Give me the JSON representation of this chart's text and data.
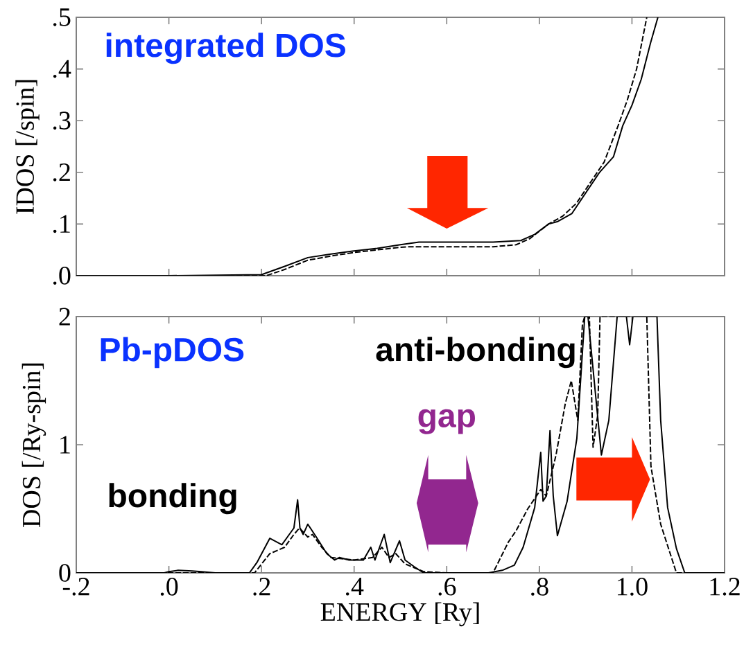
{
  "chart_data": [
    {
      "type": "line",
      "ylabel": "IDOS [/spin]",
      "annotations": [
        "integrated DOS"
      ],
      "tick_labels": "y",
      "xlim": [
        -0.2,
        1.2
      ],
      "xticks": [
        {
          "value": -0.2,
          "label": null
        },
        {
          "value": 0,
          "label": null
        },
        {
          "value": 0.2,
          "label": null
        },
        {
          "value": 0.4,
          "label": null
        },
        {
          "value": 0.6,
          "label": null
        },
        {
          "value": 0.8,
          "label": null
        },
        {
          "value": 1.0,
          "label": null
        },
        {
          "value": 1.2,
          "label": null
        }
      ],
      "ylim": [
        0,
        0.5
      ],
      "yticks": [
        {
          "value": 0,
          "label": ".0"
        },
        {
          "value": 0.1,
          "label": ".1"
        },
        {
          "value": 0.2,
          "label": ".2"
        },
        {
          "value": 0.3,
          "label": ".3"
        },
        {
          "value": 0.4,
          "label": ".4"
        },
        {
          "value": 0.5,
          "label": ".5"
        }
      ],
      "series": [
        {
          "color": "#000000",
          "line_style": "solid",
          "x": [
            -0.2,
            0.0,
            0.2,
            0.25,
            0.3,
            0.35,
            0.4,
            0.45,
            0.5,
            0.54,
            0.6,
            0.7,
            0.76,
            0.79,
            0.82,
            0.84,
            0.87,
            0.9,
            0.93,
            0.96,
            0.98,
            1.0,
            1.02,
            1.04,
            1.056
          ],
          "values": [
            0,
            0,
            0.002,
            0.018,
            0.035,
            0.042,
            0.048,
            0.053,
            0.06,
            0.065,
            0.065,
            0.065,
            0.068,
            0.08,
            0.1,
            0.105,
            0.12,
            0.16,
            0.2,
            0.23,
            0.29,
            0.33,
            0.38,
            0.45,
            0.5
          ]
        },
        {
          "color": "#000000",
          "line_style": "dashed",
          "x": [
            -0.2,
            0.0,
            0.21,
            0.25,
            0.3,
            0.35,
            0.4,
            0.45,
            0.5,
            0.52,
            0.6,
            0.7,
            0.75,
            0.78,
            0.82,
            0.85,
            0.88,
            0.91,
            0.94,
            0.97,
            0.99,
            1.01,
            1.032
          ],
          "values": [
            0,
            0,
            0,
            0.012,
            0.03,
            0.038,
            0.045,
            0.05,
            0.055,
            0.056,
            0.056,
            0.056,
            0.06,
            0.072,
            0.1,
            0.115,
            0.14,
            0.18,
            0.22,
            0.29,
            0.34,
            0.4,
            0.5
          ]
        }
      ]
    },
    {
      "type": "line",
      "xlabel": "ENERGY [Ry]",
      "ylabel": "DOS [/Ry-spin]",
      "annotations": [
        "Pb-pDOS",
        "anti-bonding",
        "gap",
        "bonding"
      ],
      "xlim": [
        -0.2,
        1.2
      ],
      "xticks": [
        {
          "value": -0.2,
          "label": "-.2"
        },
        {
          "value": 0,
          "label": ".0"
        },
        {
          "value": 0.2,
          "label": ".2"
        },
        {
          "value": 0.4,
          "label": ".4"
        },
        {
          "value": 0.6,
          "label": ".6"
        },
        {
          "value": 0.8,
          "label": ".8"
        },
        {
          "value": 1.0,
          "label": "1.0"
        },
        1.2
      ],
      "ylim": [
        0,
        2
      ],
      "yticks": [
        0,
        1,
        2
      ],
      "series": [
        {
          "color": "#000000",
          "line_style": "solid",
          "x": [
            -0.2,
            -0.01,
            0.0,
            0.02,
            0.05,
            0.07,
            0.1,
            0.174,
            0.19,
            0.218,
            0.244,
            0.26,
            0.27,
            0.278,
            0.283,
            0.29,
            0.3,
            0.32,
            0.341,
            0.358,
            0.368,
            0.389,
            0.42,
            0.436,
            0.445,
            0.465,
            0.478,
            0.498,
            0.51,
            0.529,
            0.55,
            0.69,
            0.72,
            0.746,
            0.765,
            0.79,
            0.803,
            0.808,
            0.815,
            0.823,
            0.83,
            0.839,
            0.86,
            0.881,
            0.898,
            0.905,
            0.934,
            0.95,
            0.968,
            0.988,
            0.995,
            1.002,
            1.054,
            1.062,
            1.077,
            1.096,
            1.114,
            1.2
          ],
          "values": [
            0,
            0,
            0.01,
            0.02,
            0.015,
            0.01,
            0,
            0,
            0.08,
            0.27,
            0.22,
            0.3,
            0.35,
            0.57,
            0.35,
            0.3,
            0.38,
            0.27,
            0.15,
            0.1,
            0.12,
            0.1,
            0.1,
            0.2,
            0.1,
            0.3,
            0.08,
            0.25,
            0.1,
            0.05,
            0,
            0,
            0.02,
            0.06,
            0.2,
            0.51,
            0.94,
            0.56,
            0.6,
            1.11,
            0.6,
            0.29,
            0.56,
            1.05,
            2,
            2,
            0.92,
            1.19,
            2,
            2,
            1.78,
            2,
            2,
            1.19,
            0.51,
            0.19,
            0,
            0
          ]
        },
        {
          "color": "#000000",
          "line_style": "dashed",
          "x": [
            -0.2,
            0.185,
            0.218,
            0.25,
            0.27,
            0.282,
            0.3,
            0.31,
            0.33,
            0.35,
            0.4,
            0.44,
            0.46,
            0.475,
            0.49,
            0.51,
            0.55,
            0.6,
            0.7,
            0.733,
            0.75,
            0.775,
            0.803,
            0.815,
            0.836,
            0.856,
            0.869,
            0.883,
            0.893,
            0.898,
            0.908,
            0.916,
            0.926,
            0.931,
            1.032,
            1.041,
            1.062,
            1.096,
            1.2
          ],
          "values": [
            0,
            0,
            0.15,
            0.2,
            0.3,
            0.35,
            0.28,
            0.3,
            0.2,
            0.12,
            0.1,
            0.12,
            0.2,
            0.12,
            0.15,
            0.07,
            0.01,
            0,
            0,
            0.24,
            0.33,
            0.5,
            0.65,
            0.6,
            0.92,
            1.32,
            1.5,
            1.19,
            1.94,
            2,
            2,
            0.98,
            1.23,
            2,
            2,
            0.83,
            0.38,
            0,
            0
          ]
        }
      ]
    }
  ]
}
